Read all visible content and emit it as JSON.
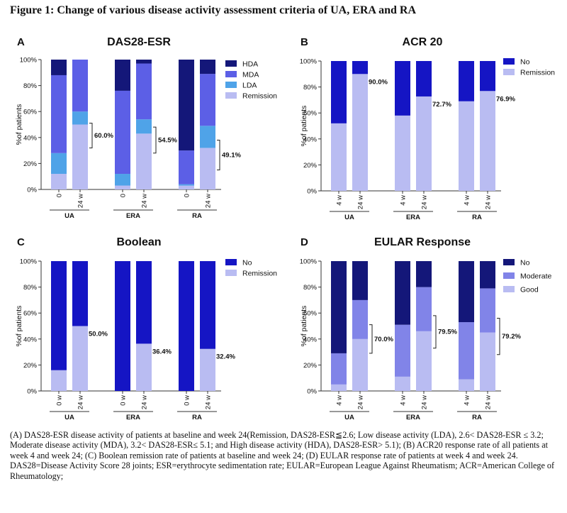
{
  "figure_title": "Figure 1: Change of various disease activity assessment criteria of  UA, ERA and RA",
  "caption": [
    "(A) DAS28-ESR disease activity of patients at baseline and week 24(Remission, DAS28-ESR≦2.6; Low disease activity (LDA), 2.6< DAS28-ESR ≤ 3.2; Moderate disease activity (MDA), 3.2< DAS28-ESR≤ 5.1; and High disease activity (HDA), DAS28-ESR> 5.1);  (B) ACR20 response rate of all patients at week 4 and week 24; (C) Boolean remission rate of patients at baseline and week 24; (D) EULAR response rate of patients at week 4 and week 24.",
    "DAS28=Disease Activity Score 28 joints; ESR=erythrocyte sedimentation rate; EULAR=European League Against Rheumatism; ACR=American College of Rheumatology;"
  ],
  "chart_data": [
    {
      "panel": "A",
      "type": "bar",
      "stacked": true,
      "title": "DAS28-ESR",
      "ylabel": "%of patients",
      "ylim": [
        0,
        100
      ],
      "yticks": [
        "0%",
        "20%",
        "40%",
        "60%",
        "80%",
        "100%"
      ],
      "groups": [
        "UA",
        "ERA",
        "RA"
      ],
      "categories": [
        "0",
        "24 w",
        "0",
        "24 w",
        "0",
        "24 w"
      ],
      "legend_position": "top-right",
      "series": [
        {
          "name": "Remission",
          "color": "#b9bcf2",
          "values": [
            12,
            50,
            3,
            43,
            3,
            32
          ]
        },
        {
          "name": "LDA",
          "color": "#4fa3e8",
          "values": [
            16,
            10,
            9,
            11,
            1,
            17
          ]
        },
        {
          "name": "MDA",
          "color": "#5c5fe6",
          "values": [
            60,
            40,
            64,
            43,
            26,
            40
          ]
        },
        {
          "name": "HDA",
          "color": "#141779",
          "values": [
            12,
            0,
            24,
            3,
            70,
            11
          ]
        }
      ],
      "annotations": [
        {
          "bar": 1,
          "from": 32,
          "to": 51,
          "label": "60.0%"
        },
        {
          "bar": 3,
          "from": 28,
          "to": 48,
          "label": "54.5%"
        },
        {
          "bar": 5,
          "from": 15,
          "to": 38,
          "label": "49.1%"
        }
      ]
    },
    {
      "panel": "B",
      "type": "bar",
      "stacked": true,
      "title": "ACR 20",
      "ylabel": "%of patients",
      "ylim": [
        0,
        100
      ],
      "yticks": [
        "0%",
        "20%",
        "40%",
        "60%",
        "80%",
        "100%"
      ],
      "groups": [
        "UA",
        "ERA",
        "RA"
      ],
      "categories": [
        "4 w",
        "24 w",
        "4 w",
        "24 w",
        "4 w",
        "24 w"
      ],
      "legend_position": "top-right",
      "series": [
        {
          "name": "Remission",
          "color": "#b9bcf2",
          "values": [
            52,
            90,
            58,
            72.7,
            69,
            76.9
          ]
        },
        {
          "name": "No",
          "color": "#1515c4",
          "values": [
            48,
            10,
            42,
            27.3,
            31,
            23.1
          ]
        }
      ],
      "annotations": [
        {
          "bar": 1,
          "label": "90.0%"
        },
        {
          "bar": 3,
          "label": "72.7%"
        },
        {
          "bar": 5,
          "label": "76.9%"
        }
      ]
    },
    {
      "panel": "C",
      "type": "bar",
      "stacked": true,
      "title": "Boolean",
      "ylabel": "%of patients",
      "ylim": [
        0,
        100
      ],
      "yticks": [
        "0%",
        "20%",
        "40%",
        "60%",
        "80%",
        "100%"
      ],
      "groups": [
        "UA",
        "ERA",
        "RA"
      ],
      "categories": [
        "0 w",
        "24 w",
        "0 w",
        "24 w",
        "0 w",
        "24 w"
      ],
      "legend_position": "top-right",
      "series": [
        {
          "name": "Remission",
          "color": "#b9bcf2",
          "values": [
            16,
            50,
            0,
            36.4,
            0,
            32.4
          ]
        },
        {
          "name": "No",
          "color": "#1515c4",
          "values": [
            84,
            50,
            100,
            63.6,
            100,
            67.6
          ]
        }
      ],
      "annotations": [
        {
          "bar": 1,
          "label": "50.0%"
        },
        {
          "bar": 3,
          "label": "36.4%"
        },
        {
          "bar": 5,
          "label": "32.4%"
        }
      ]
    },
    {
      "panel": "D",
      "type": "bar",
      "stacked": true,
      "title": "EULAR Response",
      "ylabel": "%of patients",
      "ylim": [
        0,
        100
      ],
      "yticks": [
        "0%",
        "20%",
        "40%",
        "60%",
        "80%",
        "100%"
      ],
      "groups": [
        "UA",
        "ERA",
        "RA"
      ],
      "categories": [
        "4 w",
        "24 w",
        "4 w",
        "24 w",
        "4 w",
        "24 w"
      ],
      "legend_position": "top-right",
      "series": [
        {
          "name": "Good",
          "color": "#b9bcf2",
          "values": [
            5,
            40,
            11,
            46,
            9,
            45
          ]
        },
        {
          "name": "Moderate",
          "color": "#8184e8",
          "values": [
            24,
            30,
            40,
            34,
            44,
            34
          ]
        },
        {
          "name": "No",
          "color": "#141779",
          "values": [
            71,
            30,
            49,
            20,
            47,
            21
          ]
        }
      ],
      "annotations": [
        {
          "bar": 1,
          "from": 29,
          "to": 51,
          "label": "70.0%"
        },
        {
          "bar": 3,
          "from": 33,
          "to": 58,
          "label": "79.5%"
        },
        {
          "bar": 5,
          "from": 28,
          "to": 56,
          "label": "79.2%"
        }
      ]
    }
  ]
}
